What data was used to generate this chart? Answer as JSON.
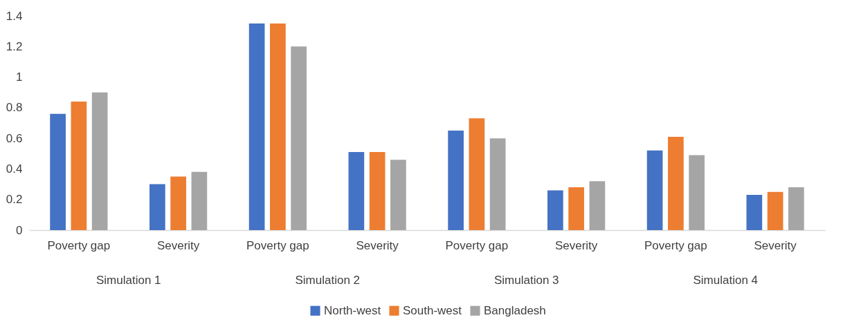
{
  "chart_data": {
    "type": "bar",
    "categories": [
      "Poverty gap",
      "Severity",
      "Poverty gap",
      "Severity",
      "Poverty gap",
      "Severity",
      "Poverty gap",
      "Severity"
    ],
    "annotations": [
      "Simulation 1",
      "Simulation 2",
      "Simulation 3",
      "Simulation 4"
    ],
    "series": [
      {
        "name": "North-west",
        "color": "#4472c4",
        "values": [
          0.76,
          0.3,
          1.35,
          0.51,
          0.65,
          0.26,
          0.52,
          0.23
        ]
      },
      {
        "name": "South-west",
        "color": "#ed7d31",
        "values": [
          0.84,
          0.35,
          1.35,
          0.51,
          0.73,
          0.28,
          0.61,
          0.25
        ]
      },
      {
        "name": "Bangladesh",
        "color": "#a5a5a5",
        "values": [
          0.9,
          0.38,
          1.2,
          0.46,
          0.6,
          0.32,
          0.49,
          0.28
        ]
      }
    ],
    "ylim": [
      0,
      1.4
    ],
    "yticks": [
      0,
      0.2,
      0.4,
      0.6,
      0.8,
      1,
      1.2,
      1.4
    ],
    "grid": false,
    "legend": "bottom"
  }
}
